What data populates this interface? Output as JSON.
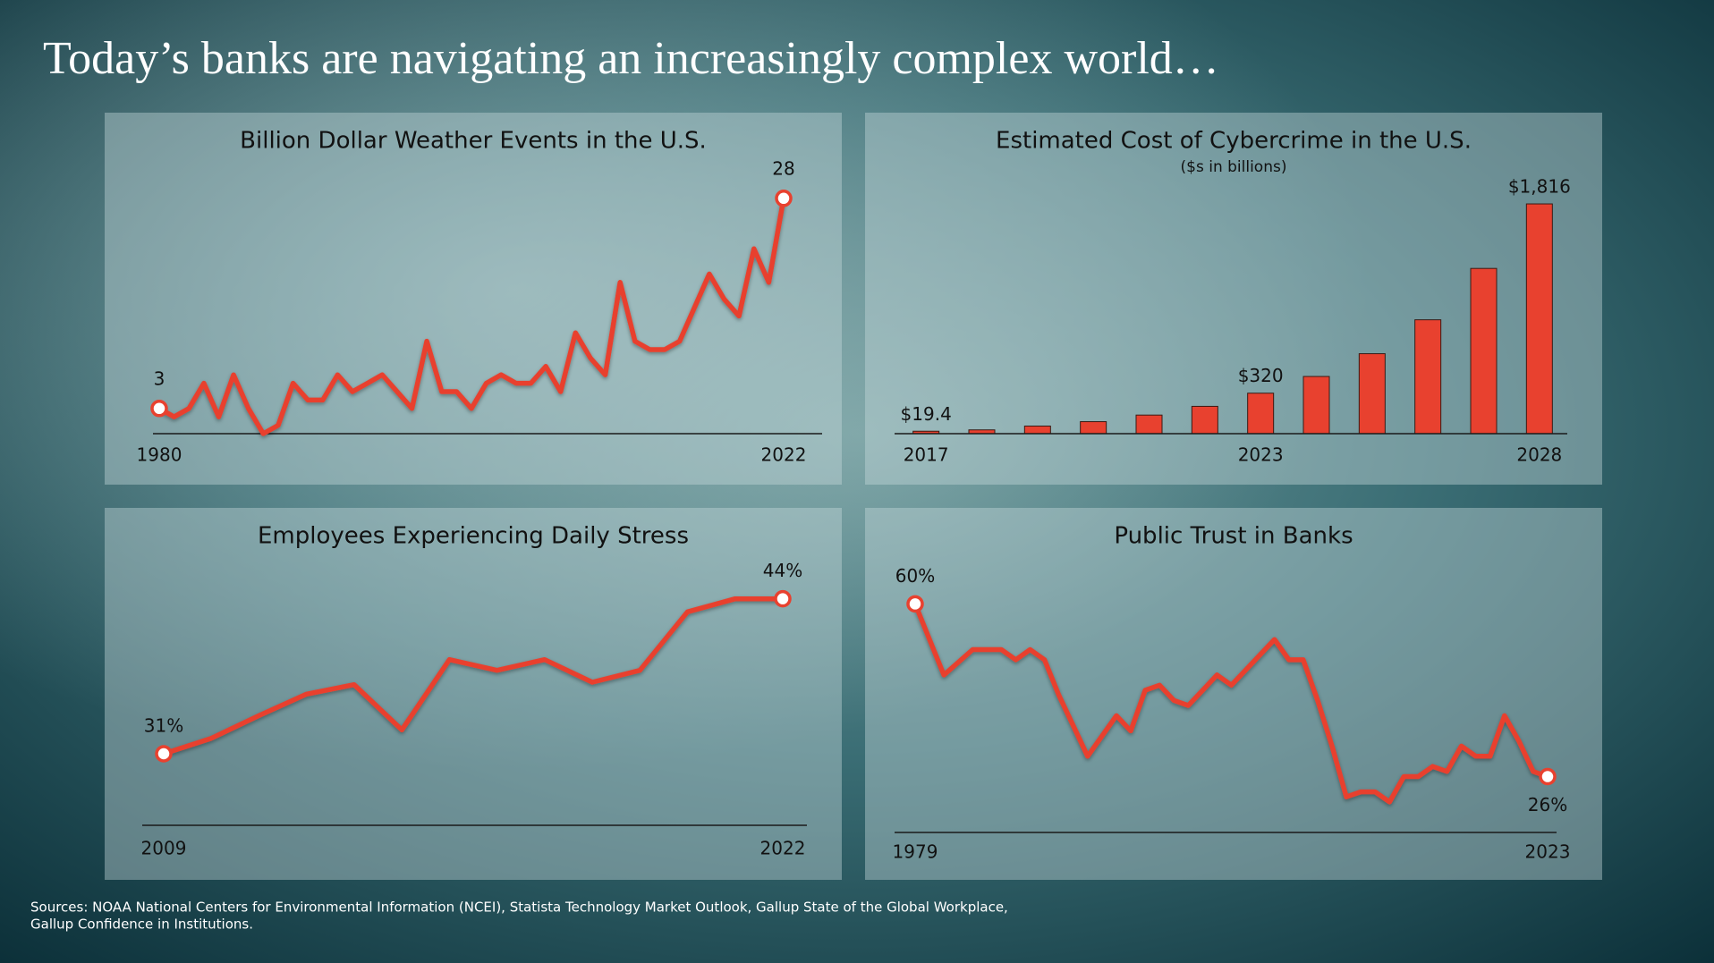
{
  "title": "Today’s banks are navigating an increasingly complex world…",
  "sources": [
    "Sources: NOAA National Centers for Environmental Information (NCEI), Statista Technology Market Outlook, Gallup State of the Global Workplace,",
    "Gallup Confidence in Institutions."
  ],
  "chart_data": [
    {
      "type": "line",
      "title": "Billion Dollar Weather Events in the U.S.",
      "color": "#e8412f",
      "x": [
        1980,
        1981,
        1982,
        1983,
        1984,
        1985,
        1986,
        1987,
        1988,
        1989,
        1990,
        1991,
        1992,
        1993,
        1994,
        1995,
        1996,
        1997,
        1998,
        1999,
        2000,
        2001,
        2002,
        2003,
        2004,
        2005,
        2006,
        2007,
        2008,
        2009,
        2010,
        2011,
        2012,
        2013,
        2014,
        2015,
        2016,
        2017,
        2018,
        2019,
        2020,
        2021,
        2022
      ],
      "values": [
        3,
        2,
        3,
        6,
        2,
        7,
        3,
        0,
        1,
        6,
        4,
        4,
        7,
        5,
        6,
        7,
        5,
        3,
        11,
        5,
        5,
        3,
        6,
        7,
        6,
        6,
        8,
        5,
        12,
        9,
        7,
        18,
        11,
        10,
        10,
        11,
        15,
        19,
        16,
        14,
        22,
        18,
        28
      ],
      "xlim": [
        1980,
        2022
      ],
      "xticks": [
        1980,
        2022
      ],
      "ylim": [
        0,
        30
      ]
    },
    {
      "type": "bar",
      "title": "Estimated Cost of Cybercrime in the U.S.",
      "subtitle": "($s in billions)",
      "color": "#e8412f",
      "categories": [
        "2017",
        null,
        null,
        null,
        null,
        null,
        "2023",
        null,
        null,
        null,
        null,
        "2028"
      ],
      "values": [
        19.4,
        30,
        60,
        95,
        147,
        216,
        320,
        452,
        632,
        900,
        1306,
        1816
      ],
      "value_labels": [
        "$19.4",
        null,
        null,
        null,
        null,
        null,
        "$320",
        null,
        null,
        null,
        null,
        "$1,816"
      ],
      "ylim": [
        0,
        2000
      ]
    },
    {
      "type": "line",
      "title": "Employees Experiencing Daily Stress",
      "color": "#e8412f",
      "x": [
        2009,
        2010,
        2011,
        2012,
        2013,
        2014,
        2015,
        2016,
        2017,
        2018,
        2019,
        2020,
        2021,
        2022
      ],
      "values": [
        31,
        32.3,
        34.2,
        36,
        36.8,
        33,
        38.9,
        38,
        38.9,
        37,
        38,
        42.9,
        44,
        44
      ],
      "value_labels": [
        "31%",
        null,
        null,
        null,
        null,
        null,
        null,
        null,
        null,
        null,
        null,
        null,
        null,
        "44%"
      ],
      "xlim": [
        2009,
        2022
      ],
      "xticks": [
        2009,
        2022
      ],
      "ylim": [
        25,
        46
      ]
    },
    {
      "type": "line",
      "title": "Public Trust in Banks",
      "color": "#e8412f",
      "x": [
        1979,
        1981,
        1983,
        1984,
        1985,
        1986,
        1987,
        1988,
        1989,
        1990,
        1991,
        1993,
        1994,
        1995,
        1996,
        1997,
        1998,
        1999,
        2000,
        2001,
        2002,
        2003,
        2004,
        2005,
        2006,
        2007,
        2008,
        2009,
        2010,
        2011,
        2012,
        2013,
        2014,
        2015,
        2016,
        2017,
        2018,
        2019,
        2020,
        2021,
        2022,
        2023
      ],
      "values": [
        60,
        46,
        51,
        51,
        51,
        49,
        51,
        49,
        42,
        36,
        30,
        38,
        35,
        43,
        44,
        41,
        40,
        43,
        46,
        44,
        47,
        50,
        53,
        49,
        49,
        41,
        32,
        22,
        23,
        23,
        21,
        26,
        26,
        28,
        27,
        32,
        30,
        30,
        38,
        33,
        27,
        26
      ],
      "value_labels": [
        "60%",
        null,
        null,
        null,
        null,
        null,
        null,
        null,
        null,
        null,
        null,
        null,
        null,
        null,
        null,
        null,
        null,
        null,
        null,
        null,
        null,
        null,
        null,
        null,
        null,
        null,
        null,
        null,
        null,
        null,
        null,
        null,
        null,
        null,
        null,
        null,
        null,
        null,
        null,
        null,
        null,
        "26%"
      ],
      "xlim": [
        1979,
        2023
      ],
      "xticks": [
        1979,
        2023
      ],
      "ylim": [
        15,
        65
      ]
    }
  ]
}
